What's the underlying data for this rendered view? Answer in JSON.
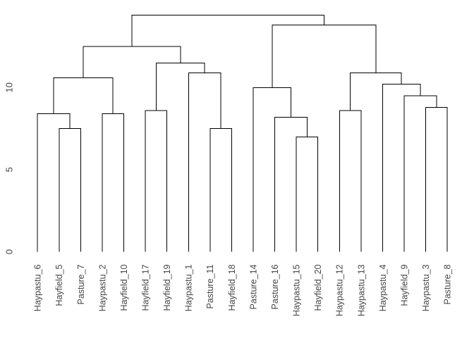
{
  "figure": {
    "background_color": "#ffffff"
  },
  "chart_data": {
    "type": "dendrogram",
    "title": "",
    "xlabel": "",
    "ylabel": "",
    "orientation": "vertical",
    "grid": false,
    "legend": false,
    "line_color": "#000000",
    "label_color": "#454545",
    "tick_label_color": "#454545",
    "yticks": [
      0,
      5,
      10
    ],
    "ylim": [
      0,
      14.4
    ],
    "leaves": [
      "Haypastu_6",
      "Hayfield_5",
      "Pasture_7",
      "Haypastu_2",
      "Hayfield_10",
      "Hayfield_17",
      "Hayfield_19",
      "Haypastu_1",
      "Pasture_11",
      "Hayfield_18",
      "Pasture_14",
      "Pasture_16",
      "Haypastu_15",
      "Hayfield_20",
      "Haypastu_12",
      "Haypastu_13",
      "Haypastu_4",
      "Hayfield_9",
      "Haypastu_3",
      "Pasture_8"
    ],
    "tree": {
      "height": 14.4,
      "children": [
        {
          "height": 12.5,
          "children": [
            {
              "height": 10.6,
              "children": [
                {
                  "height": 8.4,
                  "children": [
                    {
                      "label": "Haypastu_6"
                    },
                    {
                      "height": 7.5,
                      "children": [
                        {
                          "label": "Hayfield_5"
                        },
                        {
                          "label": "Pasture_7"
                        }
                      ]
                    }
                  ]
                },
                {
                  "height": 8.4,
                  "children": [
                    {
                      "label": "Haypastu_2"
                    },
                    {
                      "label": "Hayfield_10"
                    }
                  ]
                }
              ]
            },
            {
              "height": 11.5,
              "children": [
                {
                  "height": 8.6,
                  "children": [
                    {
                      "label": "Hayfield_17"
                    },
                    {
                      "label": "Hayfield_19"
                    }
                  ]
                },
                {
                  "height": 10.9,
                  "children": [
                    {
                      "label": "Haypastu_1"
                    },
                    {
                      "height": 7.5,
                      "children": [
                        {
                          "label": "Pasture_11"
                        },
                        {
                          "label": "Hayfield_18"
                        }
                      ]
                    }
                  ]
                }
              ]
            }
          ]
        },
        {
          "height": 13.8,
          "children": [
            {
              "height": 10.0,
              "children": [
                {
                  "label": "Pasture_14"
                },
                {
                  "height": 8.2,
                  "children": [
                    {
                      "label": "Pasture_16"
                    },
                    {
                      "height": 7.0,
                      "children": [
                        {
                          "label": "Haypastu_15"
                        },
                        {
                          "label": "Hayfield_20"
                        }
                      ]
                    }
                  ]
                }
              ]
            },
            {
              "height": 10.9,
              "children": [
                {
                  "height": 8.6,
                  "children": [
                    {
                      "label": "Haypastu_12"
                    },
                    {
                      "label": "Haypastu_13"
                    }
                  ]
                },
                {
                  "height": 10.2,
                  "children": [
                    {
                      "label": "Haypastu_4"
                    },
                    {
                      "height": 9.5,
                      "children": [
                        {
                          "label": "Hayfield_9"
                        },
                        {
                          "height": 8.8,
                          "children": [
                            {
                              "label": "Haypastu_3"
                            },
                            {
                              "label": "Pasture_8"
                            }
                          ]
                        }
                      ]
                    }
                  ]
                }
              ]
            }
          ]
        }
      ]
    }
  }
}
